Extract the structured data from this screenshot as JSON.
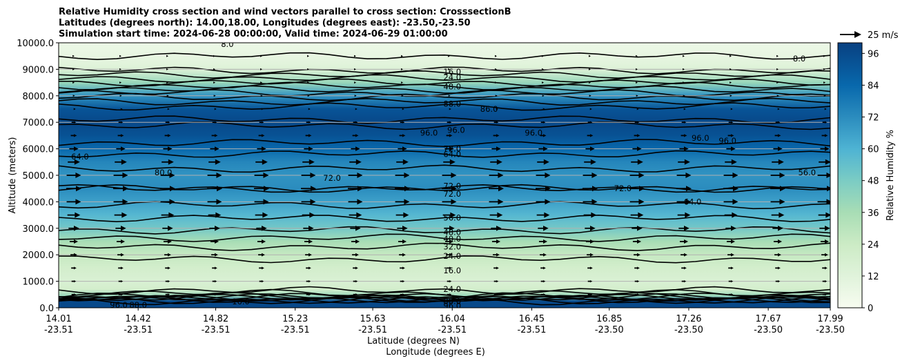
{
  "chart_data": {
    "type": "heatmap",
    "title_lines": [
      "Relative Humidity cross section and wind vectors parallel to cross section: CrosssectionB",
      "Latitudes (degrees north): 14.00,18.00, Longitudes (degrees east): -23.50,-23.50",
      "Simulation start time: 2024-06-28 00:00:00, Valid time: 2024-06-29 01:00:00"
    ],
    "ylabel": "Altitude (meters)",
    "xlabel_lat": "Latitude (degrees N)",
    "xlabel_lon": "Longitude (degrees E)",
    "ylim": [
      0,
      10000
    ],
    "yticks": [
      "0.0",
      "1000.0",
      "2000.0",
      "3000.0",
      "4000.0",
      "5000.0",
      "6000.0",
      "7000.0",
      "8000.0",
      "9000.0",
      "10000.0"
    ],
    "xticks": [
      {
        "lat": "14.01",
        "lon": "-23.51"
      },
      {
        "lat": "14.42",
        "lon": "-23.51"
      },
      {
        "lat": "14.82",
        "lon": "-23.51"
      },
      {
        "lat": "15.23",
        "lon": "-23.51"
      },
      {
        "lat": "15.63",
        "lon": "-23.51"
      },
      {
        "lat": "16.04",
        "lon": "-23.51"
      },
      {
        "lat": "16.45",
        "lon": "-23.51"
      },
      {
        "lat": "16.85",
        "lon": "-23.50"
      },
      {
        "lat": "17.26",
        "lon": "-23.50"
      },
      {
        "lat": "17.67",
        "lon": "-23.50"
      },
      {
        "lat": "17.99",
        "lon": "-23.50"
      }
    ],
    "grid": "horizontal lines at y ticks",
    "colormap": "GnBu",
    "colorbar": {
      "label": "Relative Humidity %",
      "ticks": [
        "0",
        "12",
        "24",
        "36",
        "48",
        "60",
        "72",
        "84",
        "96"
      ],
      "range": [
        0,
        100
      ]
    },
    "quiver_key": {
      "label": "25 m/s"
    },
    "rh_profile_by_altitude": [
      {
        "z": 0,
        "rh": 97
      },
      {
        "z": 250,
        "rh": 96
      },
      {
        "z": 450,
        "rh": 40
      },
      {
        "z": 700,
        "rh": 20
      },
      {
        "z": 1000,
        "rh": 16
      },
      {
        "z": 1500,
        "rh": 20
      },
      {
        "z": 2000,
        "rh": 26
      },
      {
        "z": 2500,
        "rh": 36
      },
      {
        "z": 3000,
        "rh": 50
      },
      {
        "z": 3500,
        "rh": 58
      },
      {
        "z": 4000,
        "rh": 66
      },
      {
        "z": 4500,
        "rh": 72
      },
      {
        "z": 5000,
        "rh": 70
      },
      {
        "z": 5500,
        "rh": 74
      },
      {
        "z": 6000,
        "rh": 84
      },
      {
        "z": 6500,
        "rh": 93
      },
      {
        "z": 7000,
        "rh": 97
      },
      {
        "z": 7500,
        "rh": 92
      },
      {
        "z": 8000,
        "rh": 70
      },
      {
        "z": 8500,
        "rh": 40
      },
      {
        "z": 9000,
        "rh": 14
      },
      {
        "z": 9500,
        "rh": 8
      },
      {
        "z": 10000,
        "rh": 6
      }
    ],
    "contour_labels": [
      {
        "text": "16.0",
        "x": 16.04,
        "z": 8900
      },
      {
        "text": "24.0",
        "x": 16.04,
        "z": 8700
      },
      {
        "text": "48.0",
        "x": 16.04,
        "z": 8350
      },
      {
        "text": "88.0",
        "x": 16.04,
        "z": 7700
      },
      {
        "text": "96.0",
        "x": 16.46,
        "z": 6600
      },
      {
        "text": "96.0",
        "x": 17.32,
        "z": 6400
      },
      {
        "text": "96.0",
        "x": 17.46,
        "z": 6300
      },
      {
        "text": "96.0",
        "x": 16.06,
        "z": 6700
      },
      {
        "text": "96.0",
        "x": 15.92,
        "z": 6600
      },
      {
        "text": "86.0",
        "x": 16.23,
        "z": 7500
      },
      {
        "text": "8.0",
        "x": 14.88,
        "z": 9950
      },
      {
        "text": "8.0",
        "x": 17.83,
        "z": 9400
      },
      {
        "text": "72.0",
        "x": 16.04,
        "z": 6000
      },
      {
        "text": "64.0",
        "x": 16.04,
        "z": 5800
      },
      {
        "text": "64.0",
        "x": 14.12,
        "z": 5700
      },
      {
        "text": "80.0",
        "x": 14.55,
        "z": 5100
      },
      {
        "text": "72.0",
        "x": 15.42,
        "z": 4900
      },
      {
        "text": "72.0",
        "x": 16.04,
        "z": 4600
      },
      {
        "text": "72.0",
        "x": 16.04,
        "z": 4300
      },
      {
        "text": "72.0",
        "x": 16.92,
        "z": 4500
      },
      {
        "text": "56.0",
        "x": 17.87,
        "z": 5100
      },
      {
        "text": "64.0",
        "x": 17.28,
        "z": 4000
      },
      {
        "text": "56.0",
        "x": 16.04,
        "z": 3400
      },
      {
        "text": "48.0",
        "x": 16.04,
        "z": 2850
      },
      {
        "text": "40.0",
        "x": 16.04,
        "z": 2600
      },
      {
        "text": "32.0",
        "x": 16.04,
        "z": 2300
      },
      {
        "text": "24.0",
        "x": 16.04,
        "z": 1950
      },
      {
        "text": "16.0",
        "x": 16.04,
        "z": 1400
      },
      {
        "text": "24.0",
        "x": 16.04,
        "z": 700
      },
      {
        "text": "88.0",
        "x": 14.42,
        "z": 100
      },
      {
        "text": "96.0",
        "x": 14.32,
        "z": 100
      },
      {
        "text": "16.0",
        "x": 14.95,
        "z": 230
      },
      {
        "text": "88.0",
        "x": 16.04,
        "z": 250
      },
      {
        "text": "96.0",
        "x": 16.04,
        "z": 80
      }
    ],
    "wind_arrow_relative_length_by_altitude": [
      {
        "z": 500,
        "u": 0.3
      },
      {
        "z": 1000,
        "u": 0.3
      },
      {
        "z": 1500,
        "u": 0.35
      },
      {
        "z": 2000,
        "u": 0.45
      },
      {
        "z": 2500,
        "u": 0.55
      },
      {
        "z": 3000,
        "u": 0.7
      },
      {
        "z": 3500,
        "u": 0.85
      },
      {
        "z": 4000,
        "u": 0.95
      },
      {
        "z": 4500,
        "u": 1.0
      },
      {
        "z": 5000,
        "u": 0.95
      },
      {
        "z": 5500,
        "u": 0.8
      },
      {
        "z": 6000,
        "u": 0.6
      },
      {
        "z": 6500,
        "u": 0.4
      },
      {
        "z": 7000,
        "u": 0.3
      },
      {
        "z": 7500,
        "u": 0.25
      },
      {
        "z": 8000,
        "u": 0.15
      },
      {
        "z": 8500,
        "u": 0.1
      },
      {
        "z": 9000,
        "u": 0.05
      },
      {
        "z": 9500,
        "u": 0.03
      }
    ]
  }
}
